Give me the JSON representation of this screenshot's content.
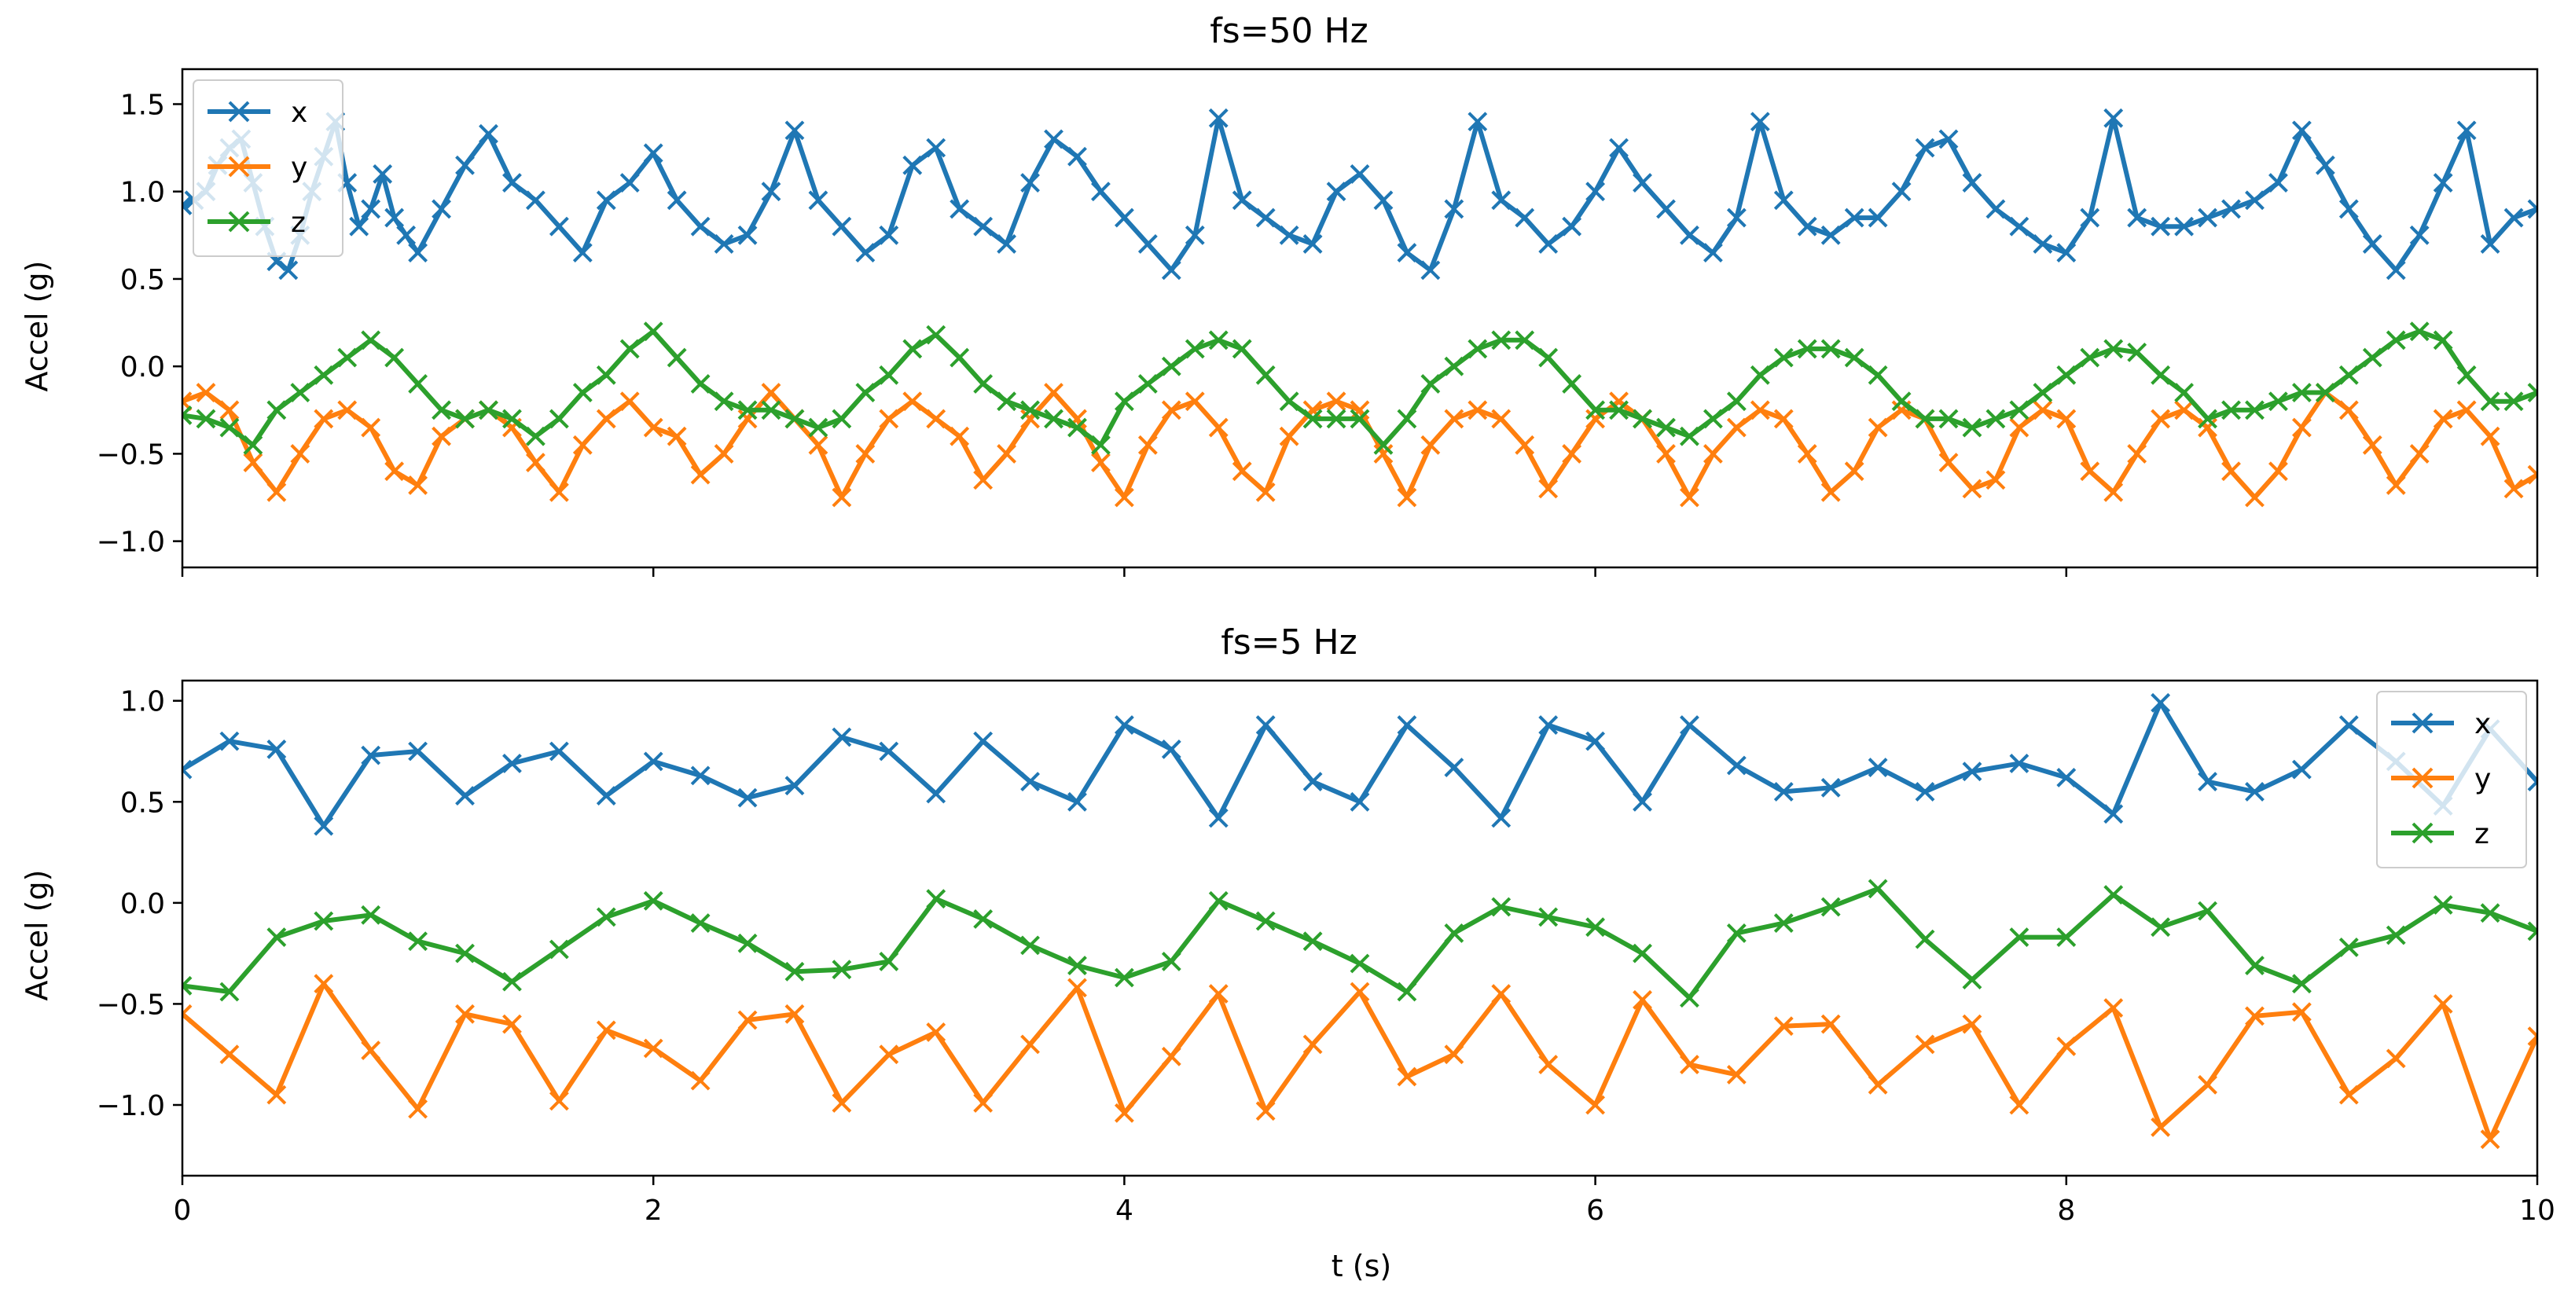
{
  "colors": {
    "x": "#1f77b4",
    "y": "#ff7f0e",
    "z": "#2ca02c"
  },
  "chart_data": [
    {
      "type": "line",
      "title": "fs=50 Hz",
      "xlabel": "",
      "ylabel": "Accel (g)",
      "xlim": [
        0,
        10
      ],
      "ylim": [
        -1.15,
        1.7
      ],
      "xticks": [
        0,
        2,
        4,
        6,
        8,
        10
      ],
      "xtick_labels_visible": false,
      "yticks": [
        -1.0,
        -0.5,
        0.0,
        0.5,
        1.0,
        1.5
      ],
      "ytick_labels": [
        "−1.0",
        "−0.5",
        "0.0",
        "0.5",
        "1.0",
        "1.5"
      ],
      "legend_loc": "upper-left",
      "marker": "x",
      "series": [
        {
          "name": "x",
          "color": "#1f77b4",
          "x": [
            0,
            0.05,
            0.1,
            0.15,
            0.2,
            0.25,
            0.3,
            0.35,
            0.4,
            0.45,
            0.5,
            0.55,
            0.6,
            0.65,
            0.7,
            0.75,
            0.8,
            0.85,
            0.9,
            0.95,
            1.0,
            1.1,
            1.2,
            1.3,
            1.4,
            1.5,
            1.6,
            1.7,
            1.8,
            1.9,
            2.0,
            2.1,
            2.2,
            2.3,
            2.4,
            2.5,
            2.6,
            2.7,
            2.8,
            2.9,
            3.0,
            3.1,
            3.2,
            3.3,
            3.4,
            3.5,
            3.6,
            3.7,
            3.8,
            3.9,
            4.0,
            4.1,
            4.2,
            4.3,
            4.4,
            4.5,
            4.6,
            4.7,
            4.8,
            4.9,
            5.0,
            5.1,
            5.2,
            5.3,
            5.4,
            5.5,
            5.6,
            5.7,
            5.8,
            5.9,
            6.0,
            6.1,
            6.2,
            6.3,
            6.4,
            6.5,
            6.6,
            6.7,
            6.8,
            6.9,
            7.0,
            7.1,
            7.2,
            7.3,
            7.4,
            7.5,
            7.6,
            7.7,
            7.8,
            7.9,
            8.0,
            8.1,
            8.2,
            8.3,
            8.4,
            8.5,
            8.6,
            8.7,
            8.8,
            8.9,
            9.0,
            9.1,
            9.2,
            9.3,
            9.4,
            9.5,
            9.6,
            9.7,
            9.8,
            9.9,
            10.0
          ],
          "y": [
            0.92,
            0.95,
            1.0,
            1.15,
            1.25,
            1.3,
            1.05,
            0.8,
            0.6,
            0.55,
            0.75,
            1.0,
            1.2,
            1.4,
            1.05,
            0.8,
            0.9,
            1.1,
            0.85,
            0.75,
            0.65,
            0.9,
            1.15,
            1.33,
            1.05,
            0.95,
            0.8,
            0.65,
            0.95,
            1.05,
            1.22,
            0.95,
            0.8,
            0.7,
            0.75,
            1.0,
            1.35,
            0.95,
            0.8,
            0.65,
            0.75,
            1.15,
            1.25,
            0.9,
            0.8,
            0.7,
            1.05,
            1.3,
            1.2,
            1.0,
            0.85,
            0.7,
            0.55,
            0.75,
            1.42,
            0.95,
            0.85,
            0.75,
            0.7,
            1.0,
            1.1,
            0.95,
            0.65,
            0.55,
            0.9,
            1.4,
            0.95,
            0.85,
            0.7,
            0.8,
            1.0,
            1.25,
            1.05,
            0.9,
            0.75,
            0.65,
            0.85,
            1.4,
            0.95,
            0.8,
            0.75,
            0.85,
            0.85,
            1.0,
            1.25,
            1.3,
            1.05,
            0.9,
            0.8,
            0.7,
            0.65,
            0.85,
            1.42,
            0.85,
            0.8,
            0.8,
            0.85,
            0.9,
            0.95,
            1.05,
            1.35,
            1.15,
            0.9,
            0.7,
            0.55,
            0.75,
            1.05,
            1.35,
            0.7,
            0.85,
            0.9
          ]
        },
        {
          "name": "y",
          "color": "#ff7f0e",
          "x": [
            0,
            0.1,
            0.2,
            0.3,
            0.4,
            0.5,
            0.6,
            0.7,
            0.8,
            0.9,
            1.0,
            1.1,
            1.2,
            1.3,
            1.4,
            1.5,
            1.6,
            1.7,
            1.8,
            1.9,
            2.0,
            2.1,
            2.2,
            2.3,
            2.4,
            2.5,
            2.6,
            2.7,
            2.8,
            2.9,
            3.0,
            3.1,
            3.2,
            3.3,
            3.4,
            3.5,
            3.6,
            3.7,
            3.8,
            3.9,
            4.0,
            4.1,
            4.2,
            4.3,
            4.4,
            4.5,
            4.6,
            4.7,
            4.8,
            4.9,
            5.0,
            5.1,
            5.2,
            5.3,
            5.4,
            5.5,
            5.6,
            5.7,
            5.8,
            5.9,
            6.0,
            6.1,
            6.2,
            6.3,
            6.4,
            6.5,
            6.6,
            6.7,
            6.8,
            6.9,
            7.0,
            7.1,
            7.2,
            7.3,
            7.4,
            7.5,
            7.6,
            7.7,
            7.8,
            7.9,
            8.0,
            8.1,
            8.2,
            8.3,
            8.4,
            8.5,
            8.6,
            8.7,
            8.8,
            8.9,
            9.0,
            9.1,
            9.2,
            9.3,
            9.4,
            9.5,
            9.6,
            9.7,
            9.8,
            9.9,
            10.0
          ],
          "y": [
            -0.2,
            -0.15,
            -0.25,
            -0.55,
            -0.72,
            -0.5,
            -0.3,
            -0.25,
            -0.35,
            -0.6,
            -0.68,
            -0.4,
            -0.3,
            -0.25,
            -0.35,
            -0.55,
            -0.72,
            -0.45,
            -0.3,
            -0.2,
            -0.35,
            -0.4,
            -0.62,
            -0.5,
            -0.3,
            -0.15,
            -0.3,
            -0.45,
            -0.75,
            -0.5,
            -0.3,
            -0.2,
            -0.3,
            -0.4,
            -0.65,
            -0.5,
            -0.3,
            -0.15,
            -0.3,
            -0.55,
            -0.75,
            -0.45,
            -0.25,
            -0.2,
            -0.35,
            -0.6,
            -0.72,
            -0.4,
            -0.25,
            -0.2,
            -0.25,
            -0.5,
            -0.75,
            -0.45,
            -0.3,
            -0.25,
            -0.3,
            -0.45,
            -0.7,
            -0.5,
            -0.3,
            -0.2,
            -0.3,
            -0.5,
            -0.75,
            -0.5,
            -0.35,
            -0.25,
            -0.3,
            -0.5,
            -0.72,
            -0.6,
            -0.35,
            -0.25,
            -0.3,
            -0.55,
            -0.7,
            -0.65,
            -0.35,
            -0.25,
            -0.3,
            -0.6,
            -0.72,
            -0.5,
            -0.3,
            -0.25,
            -0.35,
            -0.6,
            -0.75,
            -0.6,
            -0.35,
            -0.15,
            -0.25,
            -0.45,
            -0.68,
            -0.5,
            -0.3,
            -0.25,
            -0.4,
            -0.7,
            -0.62
          ]
        },
        {
          "name": "z",
          "color": "#2ca02c",
          "x": [
            0,
            0.1,
            0.2,
            0.3,
            0.4,
            0.5,
            0.6,
            0.7,
            0.8,
            0.9,
            1.0,
            1.1,
            1.2,
            1.3,
            1.4,
            1.5,
            1.6,
            1.7,
            1.8,
            1.9,
            2.0,
            2.1,
            2.2,
            2.3,
            2.4,
            2.5,
            2.6,
            2.7,
            2.8,
            2.9,
            3.0,
            3.1,
            3.2,
            3.3,
            3.4,
            3.5,
            3.6,
            3.7,
            3.8,
            3.9,
            4.0,
            4.1,
            4.2,
            4.3,
            4.4,
            4.5,
            4.6,
            4.7,
            4.8,
            4.9,
            5.0,
            5.1,
            5.2,
            5.3,
            5.4,
            5.5,
            5.6,
            5.7,
            5.8,
            5.9,
            6.0,
            6.1,
            6.2,
            6.3,
            6.4,
            6.5,
            6.6,
            6.7,
            6.8,
            6.9,
            7.0,
            7.1,
            7.2,
            7.3,
            7.4,
            7.5,
            7.6,
            7.7,
            7.8,
            7.9,
            8.0,
            8.1,
            8.2,
            8.3,
            8.4,
            8.5,
            8.6,
            8.7,
            8.8,
            8.9,
            9.0,
            9.1,
            9.2,
            9.3,
            9.4,
            9.5,
            9.6,
            9.7,
            9.8,
            9.9,
            10.0
          ],
          "y": [
            -0.28,
            -0.3,
            -0.35,
            -0.45,
            -0.25,
            -0.15,
            -0.05,
            0.05,
            0.15,
            0.05,
            -0.1,
            -0.25,
            -0.3,
            -0.25,
            -0.3,
            -0.4,
            -0.3,
            -0.15,
            -0.05,
            0.1,
            0.2,
            0.05,
            -0.1,
            -0.2,
            -0.25,
            -0.25,
            -0.3,
            -0.35,
            -0.3,
            -0.15,
            -0.05,
            0.1,
            0.18,
            0.05,
            -0.1,
            -0.2,
            -0.25,
            -0.3,
            -0.35,
            -0.45,
            -0.2,
            -0.1,
            0.0,
            0.1,
            0.15,
            0.1,
            -0.05,
            -0.2,
            -0.3,
            -0.3,
            -0.3,
            -0.45,
            -0.3,
            -0.1,
            0.0,
            0.1,
            0.15,
            0.15,
            0.05,
            -0.1,
            -0.25,
            -0.25,
            -0.3,
            -0.35,
            -0.4,
            -0.3,
            -0.2,
            -0.05,
            0.05,
            0.1,
            0.1,
            0.05,
            -0.05,
            -0.2,
            -0.3,
            -0.3,
            -0.35,
            -0.3,
            -0.25,
            -0.15,
            -0.05,
            0.05,
            0.1,
            0.08,
            -0.05,
            -0.15,
            -0.3,
            -0.25,
            -0.25,
            -0.2,
            -0.15,
            -0.15,
            -0.05,
            0.05,
            0.15,
            0.2,
            0.15,
            -0.05,
            -0.2,
            -0.2,
            -0.15
          ]
        }
      ]
    },
    {
      "type": "line",
      "title": "fs=5 Hz",
      "xlabel": "t (s)",
      "ylabel": "Accel (g)",
      "xlim": [
        0,
        10
      ],
      "ylim": [
        -1.35,
        1.1
      ],
      "xticks": [
        0,
        2,
        4,
        6,
        8,
        10
      ],
      "xtick_labels": [
        "0",
        "2",
        "4",
        "6",
        "8",
        "10"
      ],
      "yticks": [
        -1.0,
        -0.5,
        0.0,
        0.5,
        1.0
      ],
      "ytick_labels": [
        "−1.0",
        "−0.5",
        "0.0",
        "0.5",
        "1.0"
      ],
      "legend_loc": "upper-right",
      "marker": "x",
      "series": [
        {
          "name": "x",
          "color": "#1f77b4",
          "x": [
            0,
            0.2,
            0.4,
            0.6,
            0.8,
            1.0,
            1.2,
            1.4,
            1.6,
            1.8,
            2.0,
            2.2,
            2.4,
            2.6,
            2.8,
            3.0,
            3.2,
            3.4,
            3.6,
            3.8,
            4.0,
            4.2,
            4.4,
            4.6,
            4.8,
            5.0,
            5.2,
            5.4,
            5.6,
            5.8,
            6.0,
            6.2,
            6.4,
            6.6,
            6.8,
            7.0,
            7.2,
            7.4,
            7.6,
            7.8,
            8.0,
            8.2,
            8.4,
            8.6,
            8.8,
            9.0,
            9.2,
            9.4,
            9.6,
            9.8,
            10.0
          ],
          "y": [
            0.66,
            0.8,
            0.76,
            0.38,
            0.73,
            0.75,
            0.53,
            0.69,
            0.75,
            0.53,
            0.7,
            0.63,
            0.52,
            0.58,
            0.82,
            0.75,
            0.54,
            0.8,
            0.6,
            0.5,
            0.88,
            0.76,
            0.42,
            0.88,
            0.6,
            0.5,
            0.88,
            0.67,
            0.42,
            0.88,
            0.8,
            0.5,
            0.88,
            0.68,
            0.55,
            0.57,
            0.67,
            0.55,
            0.65,
            0.69,
            0.62,
            0.44,
            0.99,
            0.6,
            0.55,
            0.66,
            0.88,
            0.7,
            0.48,
            0.86,
            0.6
          ]
        },
        {
          "name": "y",
          "color": "#ff7f0e",
          "x": [
            0,
            0.2,
            0.4,
            0.6,
            0.8,
            1.0,
            1.2,
            1.4,
            1.6,
            1.8,
            2.0,
            2.2,
            2.4,
            2.6,
            2.8,
            3.0,
            3.2,
            3.4,
            3.6,
            3.8,
            4.0,
            4.2,
            4.4,
            4.6,
            4.8,
            5.0,
            5.2,
            5.4,
            5.6,
            5.8,
            6.0,
            6.2,
            6.4,
            6.6,
            6.8,
            7.0,
            7.2,
            7.4,
            7.6,
            7.8,
            8.0,
            8.2,
            8.4,
            8.6,
            8.8,
            9.0,
            9.2,
            9.4,
            9.6,
            9.8,
            10.0
          ],
          "y": [
            -0.55,
            -0.75,
            -0.95,
            -0.4,
            -0.73,
            -1.02,
            -0.55,
            -0.6,
            -0.98,
            -0.63,
            -0.72,
            -0.88,
            -0.58,
            -0.55,
            -0.99,
            -0.75,
            -0.64,
            -0.99,
            -0.7,
            -0.42,
            -1.04,
            -0.76,
            -0.45,
            -1.03,
            -0.7,
            -0.44,
            -0.86,
            -0.75,
            -0.45,
            -0.8,
            -1.0,
            -0.48,
            -0.8,
            -0.85,
            -0.61,
            -0.6,
            -0.9,
            -0.7,
            -0.6,
            -1.0,
            -0.71,
            -0.52,
            -1.11,
            -0.9,
            -0.56,
            -0.54,
            -0.95,
            -0.77,
            -0.5,
            -1.17,
            -0.66
          ]
        },
        {
          "name": "z",
          "color": "#2ca02c",
          "x": [
            0,
            0.2,
            0.4,
            0.6,
            0.8,
            1.0,
            1.2,
            1.4,
            1.6,
            1.8,
            2.0,
            2.2,
            2.4,
            2.6,
            2.8,
            3.0,
            3.2,
            3.4,
            3.6,
            3.8,
            4.0,
            4.2,
            4.4,
            4.6,
            4.8,
            5.0,
            5.2,
            5.4,
            5.6,
            5.8,
            6.0,
            6.2,
            6.4,
            6.6,
            6.8,
            7.0,
            7.2,
            7.4,
            7.6,
            7.8,
            8.0,
            8.2,
            8.4,
            8.6,
            8.8,
            9.0,
            9.2,
            9.4,
            9.6,
            9.8,
            10.0
          ],
          "y": [
            -0.41,
            -0.44,
            -0.17,
            -0.09,
            -0.06,
            -0.19,
            -0.25,
            -0.39,
            -0.23,
            -0.07,
            0.01,
            -0.1,
            -0.2,
            -0.34,
            -0.33,
            -0.29,
            0.02,
            -0.08,
            -0.21,
            -0.31,
            -0.37,
            -0.29,
            0.01,
            -0.09,
            -0.19,
            -0.3,
            -0.44,
            -0.15,
            -0.02,
            -0.07,
            -0.12,
            -0.25,
            -0.47,
            -0.15,
            -0.1,
            -0.02,
            0.07,
            -0.18,
            -0.38,
            -0.17,
            -0.17,
            0.04,
            -0.12,
            -0.04,
            -0.31,
            -0.4,
            -0.22,
            -0.16,
            -0.01,
            -0.05,
            -0.14
          ]
        }
      ]
    }
  ]
}
